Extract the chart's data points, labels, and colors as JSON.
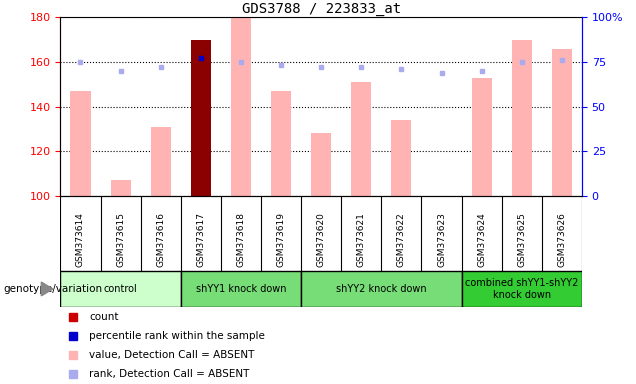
{
  "title": "GDS3788 / 223833_at",
  "samples": [
    "GSM373614",
    "GSM373615",
    "GSM373616",
    "GSM373617",
    "GSM373618",
    "GSM373619",
    "GSM373620",
    "GSM373621",
    "GSM373622",
    "GSM373623",
    "GSM373624",
    "GSM373625",
    "GSM373626"
  ],
  "bar_values": [
    147,
    107,
    131,
    170,
    180,
    147,
    128,
    151,
    134,
    100,
    153,
    170,
    166
  ],
  "bar_colors": [
    "#ffb3b3",
    "#ffb3b3",
    "#ffb3b3",
    "#8b0000",
    "#ffb3b3",
    "#ffb3b3",
    "#ffb3b3",
    "#ffb3b3",
    "#ffb3b3",
    "#ffb3b3",
    "#ffb3b3",
    "#ffb3b3",
    "#ffb3b3"
  ],
  "rank_values": [
    75,
    70,
    72,
    77,
    75,
    73,
    72,
    72,
    71,
    69,
    70,
    75,
    76
  ],
  "rank_colors": [
    "#aaaaee",
    "#aaaaee",
    "#aaaaee",
    "#0000cc",
    "#aaaaee",
    "#aaaaee",
    "#aaaaee",
    "#aaaaee",
    "#aaaaee",
    "#aaaaee",
    "#aaaaee",
    "#aaaaee",
    "#aaaaee"
  ],
  "ylim_left": [
    100,
    180
  ],
  "ylim_right": [
    0,
    100
  ],
  "yticks_left": [
    100,
    120,
    140,
    160,
    180
  ],
  "yticks_right": [
    0,
    25,
    50,
    75,
    100
  ],
  "ytick_labels_right": [
    "0",
    "25",
    "50",
    "75",
    "100%"
  ],
  "groups": [
    {
      "label": "control",
      "start": 0,
      "end": 3,
      "color": "#ccffcc"
    },
    {
      "label": "shYY1 knock down",
      "start": 3,
      "end": 6,
      "color": "#77dd77"
    },
    {
      "label": "shYY2 knock down",
      "start": 6,
      "end": 10,
      "color": "#77dd77"
    },
    {
      "label": "combined shYY1-shYY2\nknock down",
      "start": 10,
      "end": 13,
      "color": "#33cc33"
    }
  ],
  "genotype_label": "genotype/variation",
  "legend_items": [
    {
      "color": "#cc0000",
      "label": "count"
    },
    {
      "color": "#0000cc",
      "label": "percentile rank within the sample"
    },
    {
      "color": "#ffb3b3",
      "label": "value, Detection Call = ABSENT"
    },
    {
      "color": "#aaaaee",
      "label": "rank, Detection Call = ABSENT"
    }
  ],
  "bar_width": 0.5,
  "xtick_bg": "#d0d0d0",
  "plot_bg": "#ffffff",
  "left_color": "red",
  "right_color": "blue"
}
